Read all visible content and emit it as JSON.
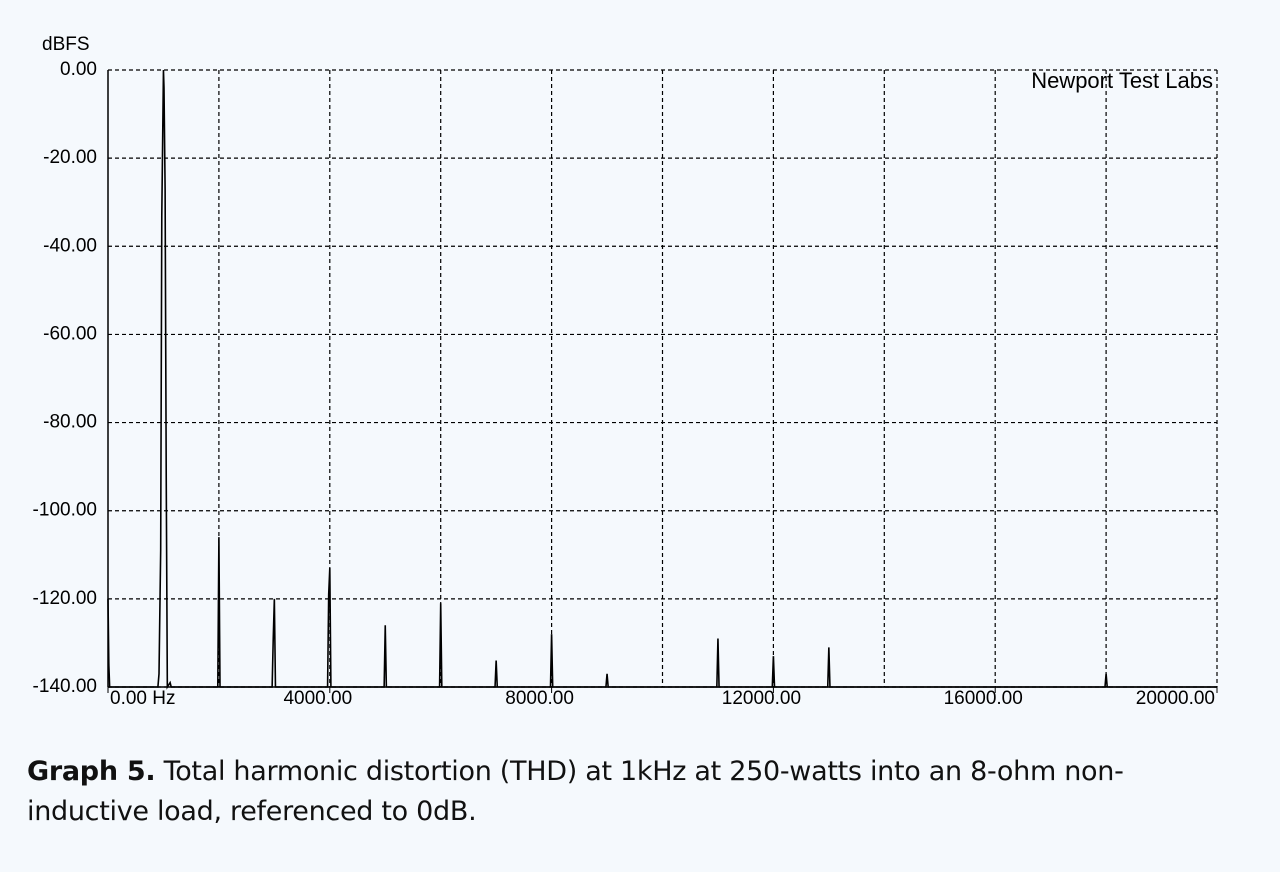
{
  "chart_data": {
    "type": "line",
    "y_axis_label": "dBFS",
    "annotation": "Newport Test Labs",
    "color": "#000000",
    "xlim": [
      0,
      20000
    ],
    "ylim": [
      -140,
      0
    ],
    "xticks": [
      {
        "value": 0,
        "label": "0.00 Hz"
      },
      {
        "value": 4000,
        "label": "4000.00"
      },
      {
        "value": 8000,
        "label": "8000.00"
      },
      {
        "value": 12000,
        "label": "12000.00"
      },
      {
        "value": 16000,
        "label": "16000.00"
      },
      {
        "value": 20000,
        "label": "20000.00"
      }
    ],
    "xgrid": [
      2000,
      4000,
      6000,
      8000,
      10000,
      12000,
      14000,
      16000,
      18000,
      20000
    ],
    "yticks": [
      {
        "value": 0,
        "label": "0.00"
      },
      {
        "value": -20,
        "label": "-20.00"
      },
      {
        "value": -40,
        "label": "-40.00"
      },
      {
        "value": -60,
        "label": "-60.00"
      },
      {
        "value": -80,
        "label": "-80.00"
      },
      {
        "value": -100,
        "label": "-100.00"
      },
      {
        "value": -120,
        "label": "-120.00"
      },
      {
        "value": -140,
        "label": "-140.00"
      }
    ],
    "grid": true,
    "x": [
      0,
      15,
      30,
      900,
      920,
      950,
      970,
      1000,
      1010,
      1030,
      1050,
      1070,
      1120,
      1140,
      1980,
      2000,
      2020,
      2960,
      2980,
      3000,
      3020,
      3960,
      3980,
      4000,
      4020,
      4980,
      5000,
      5020,
      5980,
      6000,
      6020,
      6980,
      7000,
      7020,
      7980,
      8000,
      8020,
      8980,
      9000,
      9020,
      10980,
      11000,
      11020,
      11980,
      12000,
      12020,
      12980,
      13000,
      13020,
      17980,
      18000,
      18020,
      20000
    ],
    "values": [
      -120,
      -135,
      -140,
      -140,
      -137,
      -109,
      -33,
      0,
      -4,
      -27,
      -92,
      -140,
      -139,
      -140,
      -140,
      -106,
      -140,
      -140,
      -129,
      -120,
      -140,
      -140,
      -119,
      -113,
      -140,
      -140,
      -126,
      -140,
      -140,
      -121,
      -140,
      -140,
      -134,
      -140,
      -140,
      -128,
      -140,
      -140,
      -137,
      -140,
      -140,
      -129,
      -140,
      -140,
      -133,
      -140,
      -140,
      -131,
      -140,
      -140,
      -137,
      -140,
      -140
    ]
  },
  "caption": {
    "label": "Graph 5.",
    "text": "Total harmonic distortion (THD) at 1kHz at 250-watts into an 8-ohm non-inductive load, referenced to 0dB."
  }
}
